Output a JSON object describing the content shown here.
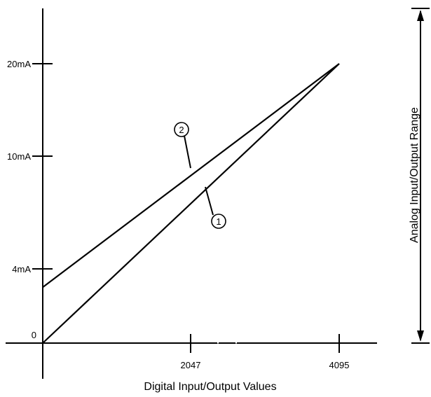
{
  "chart_data": {
    "type": "line",
    "xlabel": "Digital Input/Output Values",
    "ylabel": "Analog Input/Output Range",
    "x_ticks": [
      "2047",
      "4095"
    ],
    "y_ticks": [
      "20mA",
      "10mA",
      "4mA",
      "0"
    ],
    "series": [
      {
        "name": "1",
        "x": [
          0,
          4095
        ],
        "y": [
          0,
          20
        ]
      },
      {
        "name": "2",
        "x": [
          0,
          4095
        ],
        "y": [
          4,
          20
        ]
      }
    ]
  }
}
